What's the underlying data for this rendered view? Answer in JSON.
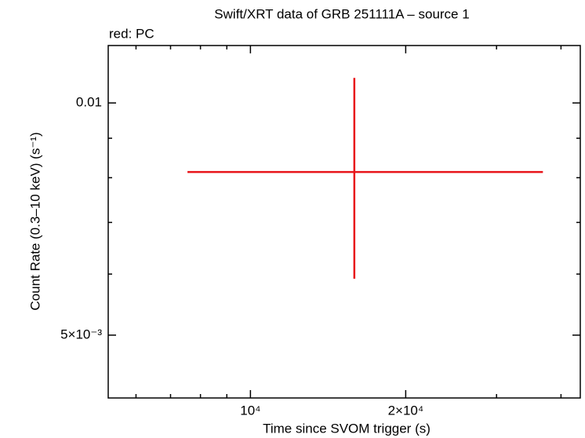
{
  "chart_data": {
    "type": "errorbar",
    "title": "Swift/XRT data of GRB 251111A – source 1",
    "subtitle": "red: PC",
    "x_label": "Time since SVOM trigger (s)",
    "y_label": "Count Rate (0.3–10 keV) (s⁻¹)",
    "xscale": "log",
    "yscale": "log",
    "xlim": [
      5300,
      43600
    ],
    "ylim": [
      0.004145,
      0.01187
    ],
    "xticks": [
      {
        "value": 10000,
        "label": "10⁴"
      },
      {
        "value": 20000,
        "label": "2×10⁴"
      }
    ],
    "xminorticks": [
      6000,
      7000,
      8000,
      9000,
      30000,
      40000
    ],
    "yticks": [
      {
        "value": 0.005,
        "label": "5×10⁻³"
      },
      0.01
    ],
    "yminorticks": [
      0.006,
      0.007,
      0.008,
      0.009
    ],
    "series": [
      {
        "color": "#e8141a",
        "x": [
          15900
        ],
        "xerr_minus": [
          8350
        ],
        "xerr_plus": [
          21000
        ],
        "y": [
          0.008137
        ],
        "yerr_minus": [
          0.00222
        ],
        "yerr_plus": [
          0.00264
        ]
      }
    ]
  }
}
